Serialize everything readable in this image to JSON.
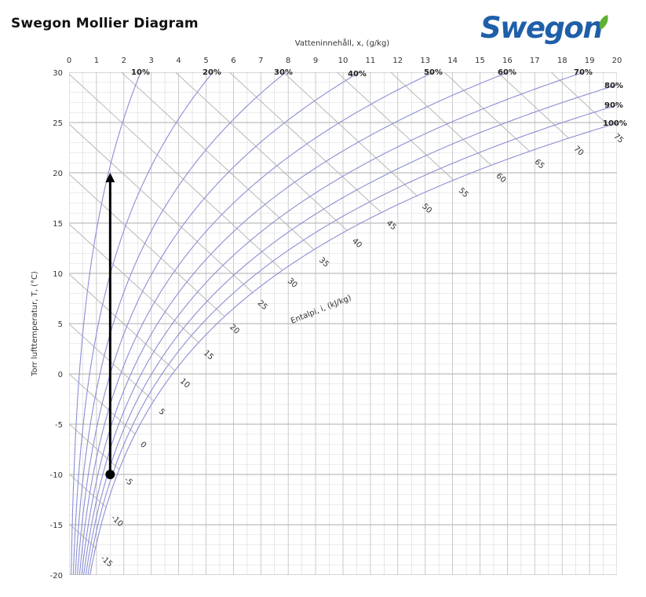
{
  "page": {
    "title": "Swegon Mollier Diagram"
  },
  "logo": {
    "text": "Swegon",
    "color": "#1f5fa8",
    "leaf_color": "#5fb130",
    "icon": "leaf-icon"
  },
  "colors": {
    "rh_curve": "#8b8fd4",
    "enthalpy_line": "#b8b8b8",
    "grid": "#cfcfcf",
    "grid_major": "#bdbdbd",
    "process_arrow": "#000000"
  },
  "chart_data": {
    "type": "line",
    "title": "Swegon Mollier Diagram",
    "xlabel": "Vatteninnehåll, x, (g/kg)",
    "ylabel": "Torr lufttemperatur, T, (°C)",
    "enthalpy_axis_label": "Entalpi, i, (kJ/kg)",
    "xlim": [
      0,
      20
    ],
    "ylim": [
      -20,
      30
    ],
    "x_ticks": [
      "0",
      "1",
      "2",
      "3",
      "4",
      "5",
      "6",
      "7",
      "8",
      "9",
      "10",
      "11",
      "12",
      "13",
      "14",
      "15",
      "16",
      "17",
      "18",
      "19",
      "20"
    ],
    "y_ticks": [
      "30",
      "25",
      "20",
      "15",
      "10",
      "5",
      "0",
      "-5",
      "-10",
      "-15",
      "-20"
    ],
    "relative_humidity_curves": [
      {
        "label": "10%",
        "rh": 0.1
      },
      {
        "label": "20%",
        "rh": 0.2
      },
      {
        "label": "30%",
        "rh": 0.3
      },
      {
        "label": "40%",
        "rh": 0.4
      },
      {
        "label": "50%",
        "rh": 0.5
      },
      {
        "label": "60%",
        "rh": 0.6
      },
      {
        "label": "70%",
        "rh": 0.7
      },
      {
        "label": "80%",
        "rh": 0.8
      },
      {
        "label": "90%",
        "rh": 0.9
      },
      {
        "label": "100%",
        "rh": 1.0
      }
    ],
    "enthalpy_lines": [
      "-15",
      "-10",
      "-5",
      "0",
      "5",
      "10",
      "15",
      "20",
      "25",
      "30",
      "35",
      "40",
      "45",
      "50",
      "55",
      "60",
      "65",
      "70",
      "75"
    ],
    "process": {
      "x": 1.5,
      "t_start": -10,
      "t_end": 20
    },
    "grid": true
  }
}
